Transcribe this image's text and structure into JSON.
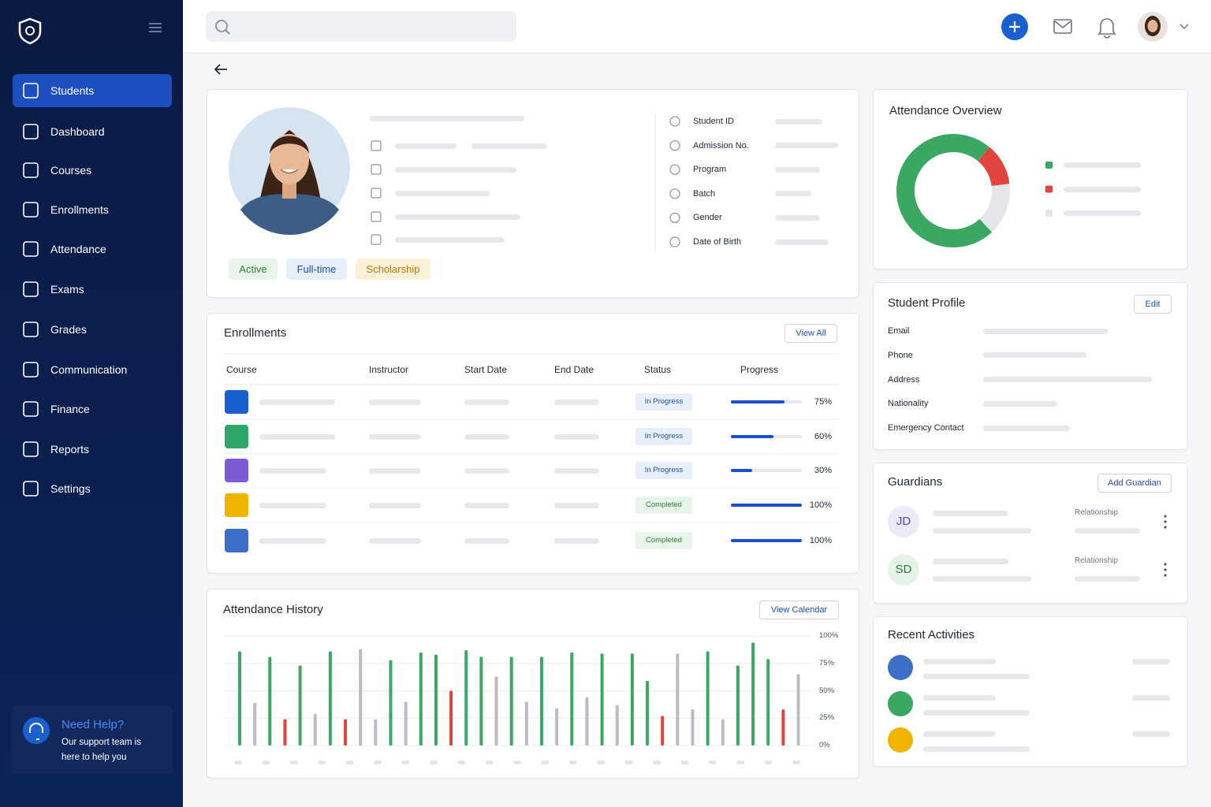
{
  "sidebar": {
    "nav": [
      "Students",
      "Dashboard",
      "Courses",
      "Enrollments",
      "Attendance",
      "Exams",
      "Grades",
      "Communication",
      "Finance",
      "Reports",
      "Settings"
    ],
    "help": {
      "title": "Need Help?",
      "text": "Our support team is here to help you"
    }
  },
  "profile": {
    "tags": [
      "Active",
      "Full-time",
      "Scholarship"
    ],
    "fields": [
      "Student ID",
      "Admission No.",
      "Program",
      "Batch",
      "Gender",
      "Date of Birth"
    ]
  },
  "attendance_overview": {
    "title": "Attendance Overview",
    "values": [
      73,
      12,
      15
    ],
    "colors": [
      "#3aa862",
      "#e0443c",
      "#e4e6ea"
    ]
  },
  "student_profile": {
    "title": "Student Profile",
    "button": "Edit",
    "fields": [
      "Email",
      "Phone",
      "Address",
      "Nationality",
      "Emergency Contact"
    ]
  },
  "guardians": {
    "title": "Guardians",
    "button": "Add Guardian",
    "items": [
      {
        "initials": "JD",
        "label": "Relationship"
      },
      {
        "initials": "SD",
        "label": "Relationship"
      }
    ]
  },
  "recent_activities": {
    "title": "Recent Activities"
  },
  "enrollments": {
    "title": "Enrollments",
    "button": "View All",
    "columns": [
      "Course",
      "Instructor",
      "Start Date",
      "End Date",
      "Status",
      "Progress"
    ],
    "rows": [
      {
        "status": "In Progress",
        "progress": 75,
        "progress_label": "75%"
      },
      {
        "status": "In Progress",
        "progress": 60,
        "progress_label": "60%"
      },
      {
        "status": "In Progress",
        "progress": 30,
        "progress_label": "30%"
      },
      {
        "status": "Completed",
        "progress": 100,
        "progress_label": "100%"
      },
      {
        "status": "Completed",
        "progress": 100,
        "progress_label": "100%"
      }
    ]
  },
  "attendance_history": {
    "title": "Attendance History",
    "button": "View Calendar",
    "ylim": [
      0,
      100
    ],
    "yticks": [
      {
        "value": 100,
        "label": "100%"
      },
      {
        "value": 75,
        "label": "75%"
      },
      {
        "value": 50,
        "label": "50%"
      },
      {
        "value": 25,
        "label": "25%"
      },
      {
        "value": 0,
        "label": "0%"
      }
    ],
    "values": [
      86,
      39,
      81,
      24,
      73,
      29,
      86,
      24,
      88,
      24,
      78,
      40,
      85,
      83,
      50,
      87,
      81,
      63,
      81,
      40,
      81,
      34,
      85,
      44,
      84,
      37,
      84,
      59,
      27,
      84,
      33,
      86,
      24,
      73,
      94,
      79,
      33,
      65
    ],
    "colors": [
      "#3aa862",
      "#b8bcc4",
      "#3aa862",
      "#e0443c",
      "#3aa862",
      "#b8bcc4",
      "#3aa862",
      "#e0443c",
      "#b8bcc4",
      "#b8bcc4",
      "#3aa862",
      "#b8bcc4",
      "#3aa862",
      "#3aa862",
      "#e0443c",
      "#3aa862",
      "#3aa862",
      "#b8bcc4",
      "#3aa862",
      "#b8bcc4",
      "#3aa862",
      "#b8bcc4",
      "#3aa862",
      "#b8bcc4",
      "#3aa862",
      "#b8bcc4",
      "#3aa862",
      "#3aa862",
      "#e0443c",
      "#b8bcc4",
      "#b8bcc4",
      "#3aa862",
      "#b8bcc4",
      "#3aa862",
      "#3aa862",
      "#3aa862",
      "#e0443c",
      "#b8bcc4"
    ]
  }
}
